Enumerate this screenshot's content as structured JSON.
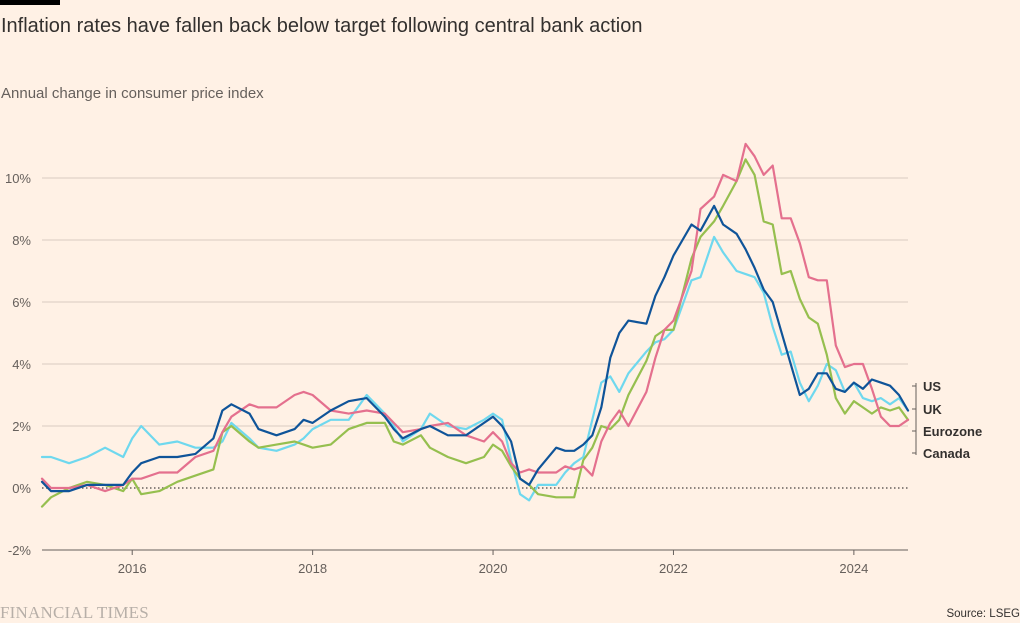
{
  "header": {
    "title": "Inflation rates have fallen back below target following central bank action",
    "subtitle": "Annual change in consumer price index"
  },
  "footer": {
    "brand": "FINANCIAL TIMES",
    "source": "Source: LSEG"
  },
  "colors": {
    "background": "#FFF1E5",
    "grid": "#D9CCC1",
    "US": "#0F5499",
    "UK": "#E4708E",
    "Eurozone": "#96BF4F",
    "Canada": "#6FD8EE"
  },
  "chart_data": {
    "type": "line",
    "title": "Inflation rates have fallen back below target following central bank action",
    "subtitle": "Annual change in consumer price index",
    "xlabel": "",
    "ylabel": "",
    "xlim": [
      2015.0,
      2024.6
    ],
    "ylim": [
      -2,
      11.5
    ],
    "x_ticks": [
      2016,
      2018,
      2020,
      2022,
      2024
    ],
    "x_tick_labels": [
      "2016",
      "2018",
      "2020",
      "2022",
      "2024"
    ],
    "y_ticks": [
      -2,
      0,
      2,
      4,
      6,
      8,
      10
    ],
    "y_tick_labels": [
      "-2%",
      "0%",
      "2%",
      "4%",
      "6%",
      "8%",
      "10%"
    ],
    "zero_line": "dotted",
    "grid": true,
    "legend": "labels at right end of lines",
    "series": [
      {
        "name": "US",
        "color": "#0F5499",
        "points": [
          [
            2015.0,
            0.2
          ],
          [
            2015.1,
            -0.1
          ],
          [
            2015.3,
            -0.1
          ],
          [
            2015.5,
            0.1
          ],
          [
            2015.7,
            0.1
          ],
          [
            2015.9,
            0.1
          ],
          [
            2016.0,
            0.5
          ],
          [
            2016.1,
            0.8
          ],
          [
            2016.3,
            1.0
          ],
          [
            2016.5,
            1.0
          ],
          [
            2016.7,
            1.1
          ],
          [
            2016.9,
            1.6
          ],
          [
            2017.0,
            2.5
          ],
          [
            2017.1,
            2.7
          ],
          [
            2017.3,
            2.4
          ],
          [
            2017.4,
            1.9
          ],
          [
            2017.6,
            1.7
          ],
          [
            2017.8,
            1.9
          ],
          [
            2017.9,
            2.2
          ],
          [
            2018.0,
            2.1
          ],
          [
            2018.2,
            2.5
          ],
          [
            2018.4,
            2.8
          ],
          [
            2018.6,
            2.9
          ],
          [
            2018.8,
            2.3
          ],
          [
            2018.9,
            1.9
          ],
          [
            2019.0,
            1.6
          ],
          [
            2019.2,
            1.9
          ],
          [
            2019.3,
            2.0
          ],
          [
            2019.5,
            1.7
          ],
          [
            2019.7,
            1.7
          ],
          [
            2019.9,
            2.1
          ],
          [
            2020.0,
            2.3
          ],
          [
            2020.1,
            2.0
          ],
          [
            2020.2,
            1.5
          ],
          [
            2020.3,
            0.3
          ],
          [
            2020.4,
            0.1
          ],
          [
            2020.5,
            0.6
          ],
          [
            2020.7,
            1.3
          ],
          [
            2020.8,
            1.2
          ],
          [
            2020.9,
            1.2
          ],
          [
            2021.0,
            1.4
          ],
          [
            2021.1,
            1.7
          ],
          [
            2021.2,
            2.6
          ],
          [
            2021.3,
            4.2
          ],
          [
            2021.4,
            5.0
          ],
          [
            2021.5,
            5.4
          ],
          [
            2021.7,
            5.3
          ],
          [
            2021.8,
            6.2
          ],
          [
            2021.9,
            6.8
          ],
          [
            2022.0,
            7.5
          ],
          [
            2022.2,
            8.5
          ],
          [
            2022.3,
            8.3
          ],
          [
            2022.45,
            9.1
          ],
          [
            2022.55,
            8.5
          ],
          [
            2022.7,
            8.2
          ],
          [
            2022.8,
            7.7
          ],
          [
            2022.9,
            7.1
          ],
          [
            2023.0,
            6.4
          ],
          [
            2023.1,
            6.0
          ],
          [
            2023.2,
            5.0
          ],
          [
            2023.3,
            4.0
          ],
          [
            2023.4,
            3.0
          ],
          [
            2023.5,
            3.2
          ],
          [
            2023.6,
            3.7
          ],
          [
            2023.7,
            3.7
          ],
          [
            2023.8,
            3.2
          ],
          [
            2023.9,
            3.1
          ],
          [
            2024.0,
            3.4
          ],
          [
            2024.1,
            3.2
          ],
          [
            2024.2,
            3.5
          ],
          [
            2024.3,
            3.4
          ],
          [
            2024.4,
            3.3
          ],
          [
            2024.5,
            3.0
          ],
          [
            2024.6,
            2.5
          ]
        ],
        "end_label": "US"
      },
      {
        "name": "UK",
        "color": "#E4708E",
        "points": [
          [
            2015.0,
            0.3
          ],
          [
            2015.1,
            0.0
          ],
          [
            2015.3,
            0.0
          ],
          [
            2015.5,
            0.1
          ],
          [
            2015.7,
            -0.1
          ],
          [
            2015.9,
            0.1
          ],
          [
            2016.0,
            0.3
          ],
          [
            2016.1,
            0.3
          ],
          [
            2016.3,
            0.5
          ],
          [
            2016.5,
            0.5
          ],
          [
            2016.7,
            1.0
          ],
          [
            2016.9,
            1.2
          ],
          [
            2017.0,
            1.8
          ],
          [
            2017.1,
            2.3
          ],
          [
            2017.3,
            2.7
          ],
          [
            2017.4,
            2.6
          ],
          [
            2017.6,
            2.6
          ],
          [
            2017.8,
            3.0
          ],
          [
            2017.9,
            3.1
          ],
          [
            2018.0,
            3.0
          ],
          [
            2018.2,
            2.5
          ],
          [
            2018.4,
            2.4
          ],
          [
            2018.6,
            2.5
          ],
          [
            2018.8,
            2.4
          ],
          [
            2018.9,
            2.1
          ],
          [
            2019.0,
            1.8
          ],
          [
            2019.2,
            1.9
          ],
          [
            2019.3,
            2.0
          ],
          [
            2019.5,
            2.1
          ],
          [
            2019.7,
            1.7
          ],
          [
            2019.9,
            1.5
          ],
          [
            2020.0,
            1.8
          ],
          [
            2020.1,
            1.5
          ],
          [
            2020.2,
            0.8
          ],
          [
            2020.3,
            0.5
          ],
          [
            2020.4,
            0.6
          ],
          [
            2020.5,
            0.5
          ],
          [
            2020.7,
            0.5
          ],
          [
            2020.8,
            0.7
          ],
          [
            2020.9,
            0.6
          ],
          [
            2021.0,
            0.7
          ],
          [
            2021.1,
            0.4
          ],
          [
            2021.2,
            1.5
          ],
          [
            2021.3,
            2.1
          ],
          [
            2021.4,
            2.5
          ],
          [
            2021.5,
            2.0
          ],
          [
            2021.7,
            3.1
          ],
          [
            2021.8,
            4.2
          ],
          [
            2021.9,
            5.1
          ],
          [
            2022.0,
            5.4
          ],
          [
            2022.2,
            7.0
          ],
          [
            2022.3,
            9.0
          ],
          [
            2022.45,
            9.4
          ],
          [
            2022.55,
            10.1
          ],
          [
            2022.7,
            9.9
          ],
          [
            2022.8,
            11.1
          ],
          [
            2022.9,
            10.7
          ],
          [
            2023.0,
            10.1
          ],
          [
            2023.1,
            10.4
          ],
          [
            2023.2,
            8.7
          ],
          [
            2023.3,
            8.7
          ],
          [
            2023.4,
            7.9
          ],
          [
            2023.5,
            6.8
          ],
          [
            2023.6,
            6.7
          ],
          [
            2023.7,
            6.7
          ],
          [
            2023.8,
            4.6
          ],
          [
            2023.9,
            3.9
          ],
          [
            2024.0,
            4.0
          ],
          [
            2024.1,
            4.0
          ],
          [
            2024.2,
            3.2
          ],
          [
            2024.3,
            2.3
          ],
          [
            2024.4,
            2.0
          ],
          [
            2024.5,
            2.0
          ],
          [
            2024.6,
            2.2
          ]
        ],
        "end_label": "UK"
      },
      {
        "name": "Eurozone",
        "color": "#96BF4F",
        "points": [
          [
            2015.0,
            -0.6
          ],
          [
            2015.1,
            -0.3
          ],
          [
            2015.3,
            0.0
          ],
          [
            2015.5,
            0.2
          ],
          [
            2015.7,
            0.1
          ],
          [
            2015.9,
            -0.1
          ],
          [
            2016.0,
            0.3
          ],
          [
            2016.1,
            -0.2
          ],
          [
            2016.3,
            -0.1
          ],
          [
            2016.5,
            0.2
          ],
          [
            2016.7,
            0.4
          ],
          [
            2016.9,
            0.6
          ],
          [
            2017.0,
            1.8
          ],
          [
            2017.1,
            2.0
          ],
          [
            2017.3,
            1.5
          ],
          [
            2017.4,
            1.3
          ],
          [
            2017.6,
            1.4
          ],
          [
            2017.8,
            1.5
          ],
          [
            2017.9,
            1.4
          ],
          [
            2018.0,
            1.3
          ],
          [
            2018.2,
            1.4
          ],
          [
            2018.4,
            1.9
          ],
          [
            2018.6,
            2.1
          ],
          [
            2018.8,
            2.1
          ],
          [
            2018.9,
            1.5
          ],
          [
            2019.0,
            1.4
          ],
          [
            2019.2,
            1.7
          ],
          [
            2019.3,
            1.3
          ],
          [
            2019.5,
            1.0
          ],
          [
            2019.7,
            0.8
          ],
          [
            2019.9,
            1.0
          ],
          [
            2020.0,
            1.4
          ],
          [
            2020.1,
            1.2
          ],
          [
            2020.2,
            0.7
          ],
          [
            2020.3,
            0.3
          ],
          [
            2020.4,
            0.1
          ],
          [
            2020.5,
            -0.2
          ],
          [
            2020.7,
            -0.3
          ],
          [
            2020.8,
            -0.3
          ],
          [
            2020.9,
            -0.3
          ],
          [
            2021.0,
            0.9
          ],
          [
            2021.1,
            1.3
          ],
          [
            2021.2,
            2.0
          ],
          [
            2021.3,
            1.9
          ],
          [
            2021.4,
            2.2
          ],
          [
            2021.5,
            3.0
          ],
          [
            2021.7,
            4.1
          ],
          [
            2021.8,
            4.9
          ],
          [
            2021.9,
            5.1
          ],
          [
            2022.0,
            5.1
          ],
          [
            2022.2,
            7.4
          ],
          [
            2022.3,
            8.1
          ],
          [
            2022.45,
            8.6
          ],
          [
            2022.55,
            9.1
          ],
          [
            2022.7,
            9.9
          ],
          [
            2022.8,
            10.6
          ],
          [
            2022.9,
            10.1
          ],
          [
            2023.0,
            8.6
          ],
          [
            2023.1,
            8.5
          ],
          [
            2023.2,
            6.9
          ],
          [
            2023.3,
            7.0
          ],
          [
            2023.4,
            6.1
          ],
          [
            2023.5,
            5.5
          ],
          [
            2023.6,
            5.3
          ],
          [
            2023.7,
            4.3
          ],
          [
            2023.8,
            2.9
          ],
          [
            2023.9,
            2.4
          ],
          [
            2024.0,
            2.8
          ],
          [
            2024.1,
            2.6
          ],
          [
            2024.2,
            2.4
          ],
          [
            2024.3,
            2.6
          ],
          [
            2024.4,
            2.5
          ],
          [
            2024.5,
            2.6
          ],
          [
            2024.6,
            2.2
          ]
        ],
        "end_label": "Eurozone"
      },
      {
        "name": "Canada",
        "color": "#6FD8EE",
        "points": [
          [
            2015.0,
            1.0
          ],
          [
            2015.1,
            1.0
          ],
          [
            2015.3,
            0.8
          ],
          [
            2015.5,
            1.0
          ],
          [
            2015.7,
            1.3
          ],
          [
            2015.9,
            1.0
          ],
          [
            2016.0,
            1.6
          ],
          [
            2016.1,
            2.0
          ],
          [
            2016.3,
            1.4
          ],
          [
            2016.5,
            1.5
          ],
          [
            2016.7,
            1.3
          ],
          [
            2016.9,
            1.3
          ],
          [
            2017.0,
            1.5
          ],
          [
            2017.1,
            2.1
          ],
          [
            2017.3,
            1.6
          ],
          [
            2017.4,
            1.3
          ],
          [
            2017.6,
            1.2
          ],
          [
            2017.8,
            1.4
          ],
          [
            2017.9,
            1.6
          ],
          [
            2018.0,
            1.9
          ],
          [
            2018.2,
            2.2
          ],
          [
            2018.4,
            2.2
          ],
          [
            2018.6,
            3.0
          ],
          [
            2018.8,
            2.4
          ],
          [
            2018.9,
            2.0
          ],
          [
            2019.0,
            1.5
          ],
          [
            2019.2,
            1.9
          ],
          [
            2019.3,
            2.4
          ],
          [
            2019.5,
            2.0
          ],
          [
            2019.7,
            1.9
          ],
          [
            2019.9,
            2.2
          ],
          [
            2020.0,
            2.4
          ],
          [
            2020.1,
            2.2
          ],
          [
            2020.2,
            0.9
          ],
          [
            2020.3,
            -0.2
          ],
          [
            2020.4,
            -0.4
          ],
          [
            2020.5,
            0.1
          ],
          [
            2020.7,
            0.1
          ],
          [
            2020.8,
            0.5
          ],
          [
            2020.9,
            0.8
          ],
          [
            2021.0,
            1.0
          ],
          [
            2021.1,
            2.2
          ],
          [
            2021.2,
            3.4
          ],
          [
            2021.3,
            3.6
          ],
          [
            2021.4,
            3.1
          ],
          [
            2021.5,
            3.7
          ],
          [
            2021.7,
            4.4
          ],
          [
            2021.8,
            4.7
          ],
          [
            2021.9,
            4.8
          ],
          [
            2022.0,
            5.1
          ],
          [
            2022.2,
            6.7
          ],
          [
            2022.3,
            6.8
          ],
          [
            2022.45,
            8.1
          ],
          [
            2022.55,
            7.6
          ],
          [
            2022.7,
            7.0
          ],
          [
            2022.8,
            6.9
          ],
          [
            2022.9,
            6.8
          ],
          [
            2023.0,
            6.3
          ],
          [
            2023.1,
            5.2
          ],
          [
            2023.2,
            4.3
          ],
          [
            2023.3,
            4.4
          ],
          [
            2023.4,
            3.4
          ],
          [
            2023.5,
            2.8
          ],
          [
            2023.6,
            3.3
          ],
          [
            2023.7,
            4.0
          ],
          [
            2023.8,
            3.8
          ],
          [
            2023.9,
            3.1
          ],
          [
            2024.0,
            3.4
          ],
          [
            2024.1,
            2.9
          ],
          [
            2024.2,
            2.8
          ],
          [
            2024.3,
            2.9
          ],
          [
            2024.4,
            2.7
          ],
          [
            2024.5,
            2.9
          ],
          [
            2024.6,
            2.5
          ]
        ],
        "end_label": "Canada"
      }
    ]
  }
}
